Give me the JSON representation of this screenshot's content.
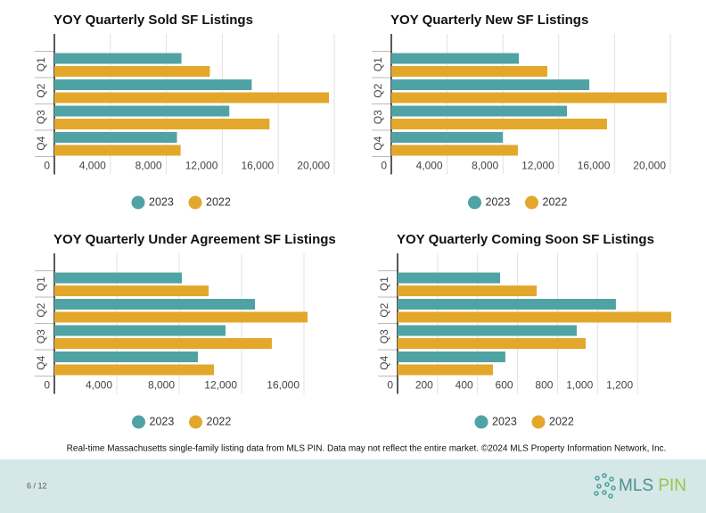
{
  "chart_data": [
    {
      "type": "bar",
      "orientation": "horizontal",
      "title": "YOY Quarterly Sold SF Listings",
      "categories": [
        "Q1",
        "Q2",
        "Q3",
        "Q4"
      ],
      "series": [
        {
          "name": "2023",
          "color": "#4fa3a5",
          "values": [
            9080,
            14100,
            12500,
            8760
          ]
        },
        {
          "name": "2022",
          "color": "#e3a82b",
          "values": [
            11110,
            19620,
            15370,
            9020
          ]
        }
      ],
      "xlim": [
        0,
        20000
      ],
      "xticks": [
        0,
        {
          "value": 4000,
          "label": "4,000"
        },
        {
          "value": 8000,
          "label": "8,000"
        },
        {
          "value": 12000,
          "label": "12,000"
        },
        {
          "value": 16000,
          "label": "16,000"
        },
        {
          "value": 20000,
          "label": "20,000"
        }
      ],
      "grid": true,
      "legend": "bottom"
    },
    {
      "type": "bar",
      "orientation": "horizontal",
      "title": "YOY Quarterly New SF Listings",
      "categories": [
        "Q1",
        "Q2",
        "Q3",
        "Q4"
      ],
      "series": [
        {
          "name": "2023",
          "color": "#4fa3a5",
          "values": [
            9140,
            14190,
            12590,
            7990
          ]
        },
        {
          "name": "2022",
          "color": "#e3a82b",
          "values": [
            11180,
            19740,
            15460,
            9070
          ]
        }
      ],
      "xlim": [
        0,
        20000
      ],
      "xticks": [
        0,
        {
          "value": 4000,
          "label": "4,000"
        },
        {
          "value": 8000,
          "label": "8,000"
        },
        {
          "value": 12000,
          "label": "12,000"
        },
        {
          "value": 16000,
          "label": "16,000"
        },
        {
          "value": 20000,
          "label": "20,000"
        }
      ],
      "grid": true,
      "legend": "bottom"
    },
    {
      "type": "bar",
      "orientation": "horizontal",
      "title": "YOY Quarterly Under Agreement SF Listings",
      "categories": [
        "Q1",
        "Q2",
        "Q3",
        "Q4"
      ],
      "series": [
        {
          "name": "2023",
          "color": "#4fa3a5",
          "values": [
            8170,
            12860,
            10970,
            9200
          ]
        },
        {
          "name": "2022",
          "color": "#e3a82b",
          "values": [
            9890,
            16230,
            13940,
            10230
          ]
        }
      ],
      "xlim": [
        0,
        18000
      ],
      "xticks": [
        0,
        {
          "value": 4000,
          "label": "4,000"
        },
        {
          "value": 8000,
          "label": "8,000"
        },
        {
          "value": 12000,
          "label": "12,000"
        },
        {
          "value": 16000,
          "label": "16,000"
        }
      ],
      "grid": true,
      "legend": "bottom"
    },
    {
      "type": "bar",
      "orientation": "horizontal",
      "title": "YOY Quarterly Coming Soon SF Listings",
      "categories": [
        "Q1",
        "Q2",
        "Q3",
        "Q4"
      ],
      "series": [
        {
          "name": "2023",
          "color": "#4fa3a5",
          "values": [
            513,
            1092,
            896,
            539
          ]
        },
        {
          "name": "2022",
          "color": "#e3a82b",
          "values": [
            696,
            1369,
            941,
            477
          ]
        }
      ],
      "xlim": [
        0,
        1400
      ],
      "xticks": [
        0,
        200,
        400,
        600,
        800,
        {
          "value": 1000,
          "label": "1,000"
        },
        {
          "value": 1200,
          "label": "1,200"
        }
      ],
      "grid": true,
      "legend": "bottom"
    }
  ],
  "footnote": "Real-time Massachusetts single-family listing data from MLS PIN. Data may not reflect the entire market. ©2024 MLS Property Information Network, Inc.",
  "page_number": "6 / 12",
  "logo": {
    "left": "MLS",
    "right": "PIN"
  }
}
